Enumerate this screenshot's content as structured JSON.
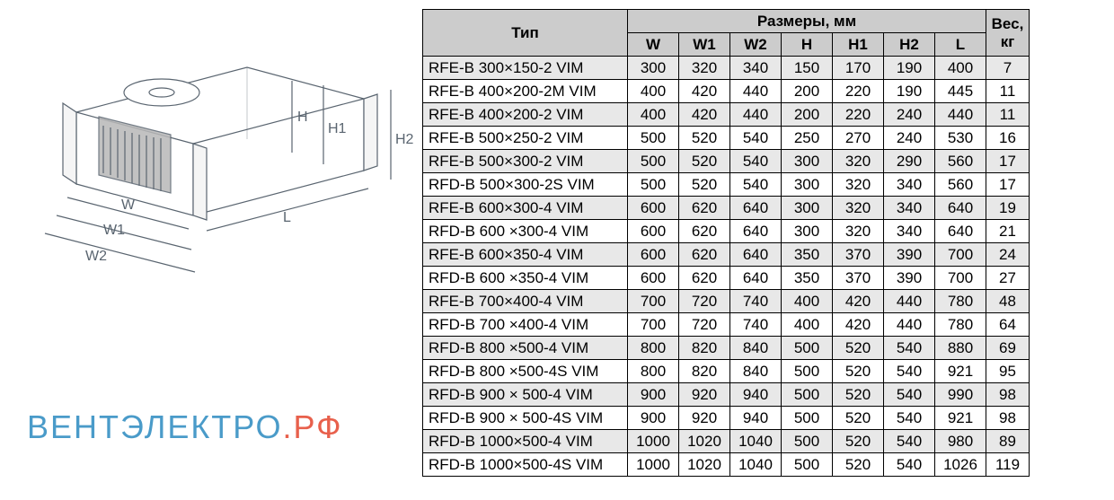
{
  "diagram": {
    "labels": {
      "W": "W",
      "W1": "W1",
      "W2": "W2",
      "H": "H",
      "H1": "H1",
      "H2": "H2",
      "L": "L"
    },
    "stroke": "#5a6570",
    "fill_light": "#f5f5f5",
    "fill_dark": "#b8b8b8"
  },
  "watermark": {
    "text_blue": "ВЕНТЭЛЕКТРО",
    "text_red": ".РФ"
  },
  "table": {
    "headers": {
      "type": "Тип",
      "dims_group": "Размеры, мм",
      "dims": [
        "W",
        "W1",
        "W2",
        "H",
        "H1",
        "H2",
        "L"
      ],
      "weight": "Вес, кг"
    },
    "rows": [
      {
        "type": "RFE-B 300×150-2 VIM",
        "d": [
          300,
          320,
          340,
          150,
          170,
          190,
          400
        ],
        "w": 7
      },
      {
        "type": "RFE-B 400×200-2M VIM",
        "d": [
          400,
          420,
          440,
          200,
          220,
          190,
          445
        ],
        "w": 11
      },
      {
        "type": "RFE-B 400×200-2 VIM",
        "d": [
          400,
          420,
          440,
          200,
          220,
          240,
          440
        ],
        "w": 11
      },
      {
        "type": "RFE-B 500×250-2 VIM",
        "d": [
          500,
          520,
          540,
          250,
          270,
          240,
          530
        ],
        "w": 16
      },
      {
        "type": "RFE-B 500×300-2 VIM",
        "d": [
          500,
          520,
          540,
          300,
          320,
          290,
          560
        ],
        "w": 17
      },
      {
        "type": "RFD-B 500×300-2S VIM",
        "d": [
          500,
          520,
          540,
          300,
          320,
          340,
          560
        ],
        "w": 17
      },
      {
        "type": "RFE-B 600×300-4 VIM",
        "d": [
          600,
          620,
          640,
          300,
          320,
          340,
          640
        ],
        "w": 19
      },
      {
        "type": "RFD-B 600 ×300-4 VIM",
        "d": [
          600,
          620,
          640,
          300,
          320,
          340,
          640
        ],
        "w": 21
      },
      {
        "type": "RFE-B 600×350-4 VIM",
        "d": [
          600,
          620,
          640,
          350,
          370,
          390,
          700
        ],
        "w": 24
      },
      {
        "type": "RFD-B 600 ×350-4 VIM",
        "d": [
          600,
          620,
          640,
          350,
          370,
          390,
          700
        ],
        "w": 27
      },
      {
        "type": "RFE-B 700×400-4 VIM",
        "d": [
          700,
          720,
          740,
          400,
          420,
          440,
          780
        ],
        "w": 48
      },
      {
        "type": "RFD-B 700 ×400-4 VIM",
        "d": [
          700,
          720,
          740,
          400,
          420,
          440,
          780
        ],
        "w": 64
      },
      {
        "type": "RFD-B 800 ×500-4 VIM",
        "d": [
          800,
          820,
          840,
          500,
          520,
          540,
          880
        ],
        "w": 69
      },
      {
        "type": "RFD-B 800 ×500-4S VIM",
        "d": [
          800,
          820,
          840,
          500,
          520,
          540,
          921
        ],
        "w": 95
      },
      {
        "type": "RFD-B 900 × 500-4 VIM",
        "d": [
          900,
          920,
          940,
          500,
          520,
          540,
          990
        ],
        "w": 98
      },
      {
        "type": "RFD-B 900 × 500-4S VIM",
        "d": [
          900,
          920,
          940,
          500,
          520,
          540,
          921
        ],
        "w": 98
      },
      {
        "type": "RFD-B 1000×500-4 VIM",
        "d": [
          1000,
          1020,
          1040,
          500,
          520,
          540,
          980
        ],
        "w": 89
      },
      {
        "type": "RFD-B 1000×500-4S VIM",
        "d": [
          1000,
          1020,
          1040,
          500,
          520,
          540,
          1026
        ],
        "w": 119
      }
    ]
  },
  "styling": {
    "header_bg": "#cccccc",
    "row_odd_bg": "#e8e8e8",
    "row_even_bg": "#ffffff",
    "border_color": "#000000",
    "font_size_table": 17,
    "font_size_header": 17,
    "font_family": "Arial"
  }
}
